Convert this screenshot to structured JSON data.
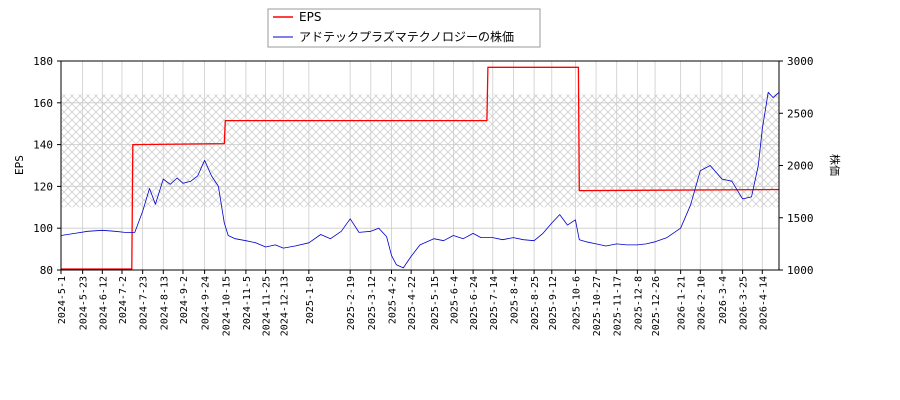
{
  "chart_data": {
    "type": "line",
    "legend": {
      "placement": "top",
      "entries": [
        "EPS",
        "アドテックプラズマテクノロジーの株価"
      ]
    },
    "ylabel_left": "EPS",
    "ylabel_right": "株価",
    "ylim_left": [
      80,
      180
    ],
    "ylim_right": [
      1000,
      3000
    ],
    "yticks_left": [
      "80",
      "100",
      "120",
      "140",
      "160",
      "180"
    ],
    "yticks_right": [
      "1000",
      "1500",
      "2000",
      "2500",
      "3000"
    ],
    "x_range": [
      "2024-05-01",
      "2026-05-01"
    ],
    "xticks": [
      "2024-5-1",
      "2024-5-23",
      "2024-6-12",
      "2024-7-2",
      "2024-7-23",
      "2024-8-13",
      "2024-9-2",
      "2024-9-24",
      "2024-10-15",
      "2024-11-5",
      "2024-11-25",
      "2024-12-13",
      "2025-1-8",
      "2025-2-19",
      "2025-3-12",
      "2025-4-2",
      "2025-4-22",
      "2025-5-15",
      "2025-6-4",
      "2025-6-24",
      "2025-7-14",
      "2025-8-4",
      "2025-8-25",
      "2025-9-12",
      "2025-10-6",
      "2025-10-27",
      "2025-11-17",
      "2025-12-8",
      "2025-12-26",
      "2026-1-21",
      "2026-2-10",
      "2026-3-4",
      "2026-3-25",
      "2026-4-14"
    ],
    "grid": true,
    "shaded_band_left": [
      110,
      164
    ],
    "colors": {
      "eps": "#ff0000",
      "price": "#0000cc"
    },
    "series": [
      {
        "name": "EPS",
        "axis": "left",
        "x": [
          "2024-05-01",
          "2024-07-12",
          "2024-07-13",
          "2024-10-14",
          "2024-10-15",
          "2025-07-08",
          "2025-07-09",
          "2025-10-09",
          "2025-10-10",
          "2026-05-01"
        ],
        "values": [
          80.5,
          80.5,
          140,
          140.5,
          151.5,
          151.5,
          177,
          177,
          118,
          118.5
        ]
      },
      {
        "name": "アドテックプラズマテクノロジーの株価",
        "axis": "right",
        "x": [
          "2024-05-01",
          "2024-05-15",
          "2024-05-28",
          "2024-06-12",
          "2024-06-25",
          "2024-07-05",
          "2024-07-15",
          "2024-07-23",
          "2024-07-30",
          "2024-08-05",
          "2024-08-13",
          "2024-08-20",
          "2024-08-27",
          "2024-09-02",
          "2024-09-10",
          "2024-09-17",
          "2024-09-24",
          "2024-10-01",
          "2024-10-08",
          "2024-10-14",
          "2024-10-18",
          "2024-10-25",
          "2024-11-05",
          "2024-11-15",
          "2024-11-25",
          "2024-12-05",
          "2024-12-13",
          "2024-12-25",
          "2025-01-08",
          "2025-01-20",
          "2025-01-30",
          "2025-02-10",
          "2025-02-19",
          "2025-02-28",
          "2025-03-12",
          "2025-03-20",
          "2025-03-28",
          "2025-04-02",
          "2025-04-07",
          "2025-04-14",
          "2025-04-22",
          "2025-05-01",
          "2025-05-15",
          "2025-05-25",
          "2025-06-04",
          "2025-06-14",
          "2025-06-24",
          "2025-07-02",
          "2025-07-14",
          "2025-07-24",
          "2025-08-04",
          "2025-08-14",
          "2025-08-25",
          "2025-09-03",
          "2025-09-12",
          "2025-09-20",
          "2025-09-28",
          "2025-10-06",
          "2025-10-10",
          "2025-10-17",
          "2025-10-27",
          "2025-11-06",
          "2025-11-17",
          "2025-11-27",
          "2025-12-08",
          "2025-12-17",
          "2025-12-26",
          "2026-01-07",
          "2026-01-21",
          "2026-01-31",
          "2026-02-10",
          "2026-02-20",
          "2026-03-04",
          "2026-03-14",
          "2026-03-25",
          "2026-04-03",
          "2026-04-10",
          "2026-04-14",
          "2026-04-20",
          "2026-04-25",
          "2026-05-01"
        ],
        "values": [
          1330,
          1350,
          1370,
          1380,
          1370,
          1360,
          1360,
          1560,
          1780,
          1630,
          1870,
          1820,
          1880,
          1830,
          1850,
          1900,
          2050,
          1900,
          1800,
          1450,
          1330,
          1300,
          1280,
          1260,
          1220,
          1240,
          1210,
          1230,
          1260,
          1340,
          1300,
          1370,
          1490,
          1360,
          1370,
          1400,
          1320,
          1140,
          1050,
          1020,
          1130,
          1240,
          1300,
          1280,
          1330,
          1300,
          1350,
          1310,
          1310,
          1290,
          1310,
          1290,
          1280,
          1350,
          1450,
          1530,
          1430,
          1480,
          1290,
          1270,
          1250,
          1230,
          1250,
          1240,
          1240,
          1250,
          1270,
          1310,
          1400,
          1620,
          1950,
          2000,
          1870,
          1850,
          1680,
          1700,
          2000,
          2350,
          2700,
          2650,
          2700
        ]
      }
    ]
  }
}
